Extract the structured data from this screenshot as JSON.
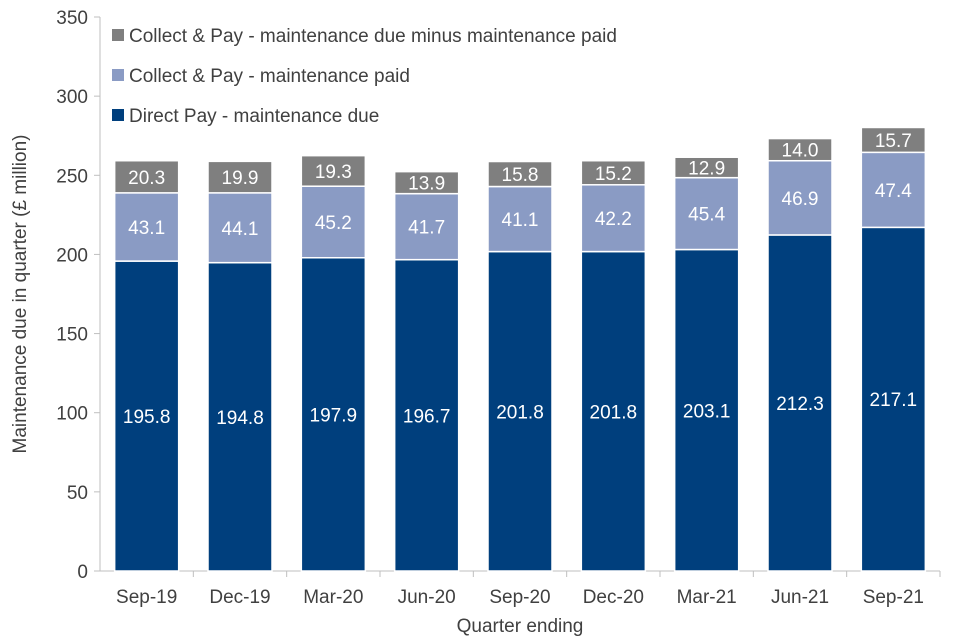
{
  "chart_data": {
    "type": "stacked-bar",
    "title": "",
    "xlabel": "Quarter ending",
    "ylabel": "Maintenance due in quarter  (£ million)",
    "ylim": [
      0,
      350
    ],
    "yticks": [
      0,
      50,
      100,
      150,
      200,
      250,
      300,
      350
    ],
    "grid": false,
    "legend_position": "top-left",
    "categories": [
      "Sep-19",
      "Dec-19",
      "Mar-20",
      "Jun-20",
      "Sep-20",
      "Dec-20",
      "Mar-21",
      "Jun-21",
      "Sep-21"
    ],
    "series": [
      {
        "name": "Direct Pay - maintenance due",
        "color": "#003f7d",
        "values": [
          195.8,
          194.8,
          197.9,
          196.7,
          201.8,
          201.8,
          203.1,
          212.3,
          217.1
        ],
        "labels": [
          "195.8",
          "194.8",
          "197.9",
          "196.7",
          "201.8",
          "201.8",
          "203.1",
          "212.3",
          "217.1"
        ]
      },
      {
        "name": "Collect & Pay - maintenance paid",
        "color": "#8a9bc4",
        "values": [
          43.1,
          44.1,
          45.2,
          41.7,
          41.1,
          42.2,
          45.4,
          46.9,
          47.4
        ],
        "labels": [
          "43.1",
          "44.1",
          "45.2",
          "41.7",
          "41.1",
          "42.2",
          "45.4",
          "46.9",
          "47.4"
        ]
      },
      {
        "name": "Collect & Pay - maintenance due minus maintenance paid",
        "color": "#7f7f7f",
        "values": [
          20.3,
          19.9,
          19.3,
          13.9,
          15.8,
          15.2,
          12.9,
          14.0,
          15.7
        ],
        "labels": [
          "20.3",
          "19.9",
          "19.3",
          "13.9",
          "15.8",
          "15.2",
          "12.9",
          "14.0",
          "15.7"
        ]
      }
    ]
  }
}
